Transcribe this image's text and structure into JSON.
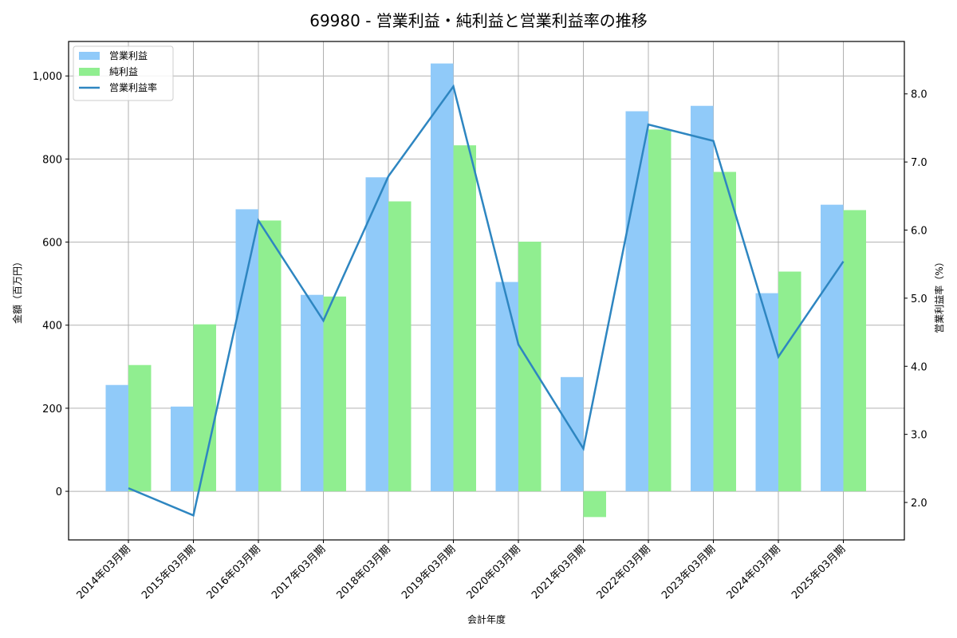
{
  "chart_data": {
    "type": "bar",
    "title": "69980 - 営業利益・純利益と営業利益率の推移",
    "xlabel": "会計年度",
    "ylabel": "金額（百万円）",
    "y2label": "営業利益率（%）",
    "categories": [
      "2014年03月期",
      "2015年03月期",
      "2016年03月期",
      "2017年03月期",
      "2018年03月期",
      "2019年03月期",
      "2020年03月期",
      "2021年03月期",
      "2022年03月期",
      "2023年03月期",
      "2024年03月期",
      "2025年03月期"
    ],
    "series": [
      {
        "name": "営業利益",
        "type": "bar",
        "axis": "left",
        "color": "#90CAF9",
        "values": [
          256,
          204,
          679,
          473,
          756,
          1030,
          504,
          275,
          915,
          928,
          477,
          690
        ]
      },
      {
        "name": "純利益",
        "type": "bar",
        "axis": "left",
        "color": "#90EE90",
        "values": [
          304,
          402,
          652,
          469,
          698,
          833,
          601,
          -62,
          871,
          769,
          529,
          677
        ]
      },
      {
        "name": "営業利益率",
        "type": "line",
        "axis": "right",
        "color": "#2E86C1",
        "values": [
          2.21,
          1.81,
          6.14,
          4.67,
          6.79,
          8.11,
          4.32,
          2.79,
          7.55,
          7.31,
          4.14,
          5.54
        ]
      }
    ],
    "ylim": [
      -117,
      1083
    ],
    "y2lim": [
      1.45,
      8.77
    ],
    "yticks": [
      0,
      200,
      400,
      600,
      800,
      1000
    ],
    "ytick_labels": [
      "0",
      "200",
      "400",
      "600",
      "800",
      "1,000"
    ],
    "y2ticks": [
      2.0,
      3.0,
      4.0,
      5.0,
      6.0,
      7.0,
      8.0
    ],
    "y2tick_labels": [
      "2.0",
      "3.0",
      "4.0",
      "5.0",
      "6.0",
      "7.0",
      "8.0"
    ],
    "grid": true,
    "legend_position": "upper left"
  }
}
